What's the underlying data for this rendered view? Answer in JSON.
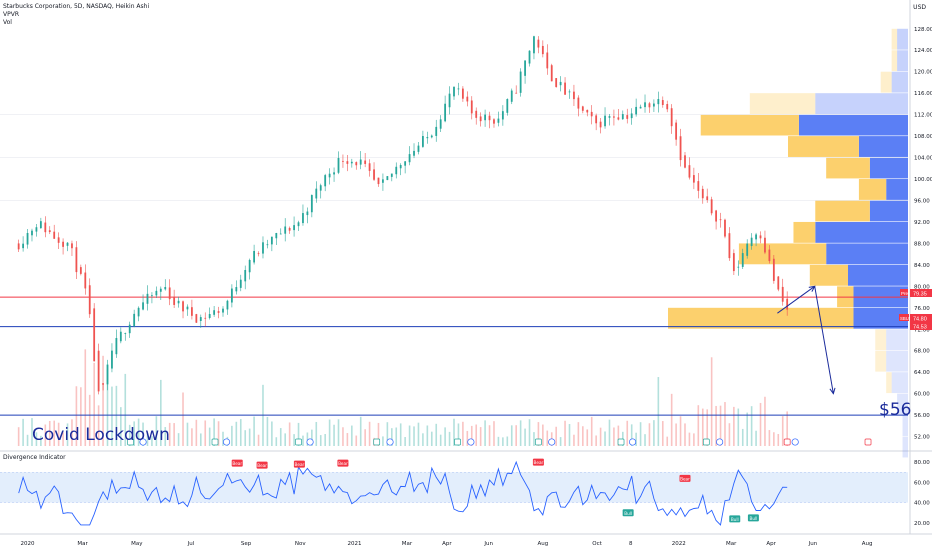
{
  "header": {
    "symbol_line": "Starbucks Corporation, 5D, NASDAQ, Heikin Ashi",
    "indicator_1": "VPVR",
    "indicator_2": "Vol",
    "currency": "USD"
  },
  "annotations": {
    "covid_label": "Covid Lockdown",
    "target_label": "$56"
  },
  "price_badges": {
    "pre_tag": "Pre",
    "pre_value": "79.35",
    "sbux_tag": "SBUX",
    "sbux_value": "74.80",
    "low_value": "74.53"
  },
  "oscillator": {
    "title": "Divergence Indicator",
    "ticks": [
      "80.00",
      "60.00",
      "40.00",
      "20.00"
    ],
    "signals": [
      {
        "x": "2020-08-22",
        "y": 79,
        "label": "Bear"
      },
      {
        "x": "2020-09-19",
        "y": 77,
        "label": "Bear"
      },
      {
        "x": "2020-10-31",
        "y": 78,
        "label": "Bear"
      },
      {
        "x": "2020-12-19",
        "y": 79,
        "label": "Bear"
      },
      {
        "x": "2021-07-27",
        "y": 80,
        "label": "Bear"
      },
      {
        "x": "2021-11-05",
        "y": 30,
        "label": "Bull"
      },
      {
        "x": "2022-01-08",
        "y": 64,
        "label": "Bear"
      },
      {
        "x": "2022-03-05",
        "y": 24,
        "label": "Bull"
      },
      {
        "x": "2022-03-26",
        "y": 25,
        "label": "Bull"
      }
    ]
  },
  "chart_data": {
    "type": "candlestick",
    "xlabels": [
      "2020",
      "Mar",
      "May",
      "Jul",
      "Sep",
      "Nov",
      "2021",
      "Mar",
      "Apr",
      "Jun",
      "Aug",
      "Oct",
      "8",
      "2022",
      "Mar",
      "Apr",
      "Jun",
      "Aug"
    ],
    "yticks": [
      52,
      56,
      60,
      64,
      68,
      72,
      76,
      80,
      84,
      88,
      92,
      96,
      100,
      104,
      108,
      112,
      116,
      120,
      124,
      128
    ],
    "ylim": [
      49.5,
      131.5
    ],
    "price_path": [
      [
        "2019-12-20",
        88
      ],
      [
        "2020-01-10",
        92
      ],
      [
        "2020-01-31",
        89
      ],
      [
        "2020-02-14",
        88
      ],
      [
        "2020-03-06",
        78
      ],
      [
        "2020-03-20",
        58
      ],
      [
        "2020-04-03",
        68
      ],
      [
        "2020-05-01",
        76
      ],
      [
        "2020-06-01",
        80
      ],
      [
        "2020-06-12",
        77
      ],
      [
        "2020-07-10",
        74
      ],
      [
        "2020-08-07",
        76
      ],
      [
        "2020-09-04",
        85
      ],
      [
        "2020-10-02",
        89
      ],
      [
        "2020-10-30",
        92
      ],
      [
        "2020-11-27",
        100
      ],
      [
        "2020-12-18",
        104
      ],
      [
        "2021-01-08",
        103
      ],
      [
        "2021-01-29",
        98
      ],
      [
        "2021-02-26",
        104
      ],
      [
        "2021-03-26",
        108
      ],
      [
        "2021-04-23",
        117
      ],
      [
        "2021-05-14",
        112
      ],
      [
        "2021-06-11",
        111
      ],
      [
        "2021-07-02",
        117
      ],
      [
        "2021-07-23",
        127
      ],
      [
        "2021-08-06",
        120
      ],
      [
        "2021-08-27",
        116
      ],
      [
        "2021-09-17",
        112
      ],
      [
        "2021-10-01",
        110
      ],
      [
        "2021-10-15",
        112
      ],
      [
        "2021-11-05",
        112
      ],
      [
        "2021-11-26",
        114
      ],
      [
        "2021-12-17",
        115
      ],
      [
        "2022-01-07",
        102
      ],
      [
        "2022-01-28",
        96
      ],
      [
        "2022-02-18",
        92
      ],
      [
        "2022-03-04",
        82
      ],
      [
        "2022-03-18",
        88
      ],
      [
        "2022-04-01",
        91
      ],
      [
        "2022-04-22",
        79
      ],
      [
        "2022-05-06",
        74.5
      ]
    ],
    "horizontal_levels": [
      {
        "price": 78,
        "color": "#f23645"
      },
      {
        "price": 72.5,
        "color": "#1e3fb8"
      },
      {
        "price": 56,
        "color": "#1e3fb8"
      }
    ],
    "projection": [
      [
        "2022-04-22",
        75
      ],
      [
        "2022-06-03",
        80
      ],
      [
        "2022-06-24",
        60
      ]
    ],
    "volume_profile": [
      {
        "price": 126,
        "up": 1,
        "down": 2
      },
      {
        "price": 122,
        "up": 1,
        "down": 2
      },
      {
        "price": 118,
        "up": 2,
        "down": 3
      },
      {
        "price": 114,
        "up": 12,
        "down": 17
      },
      {
        "price": 110,
        "up": 18,
        "down": 20
      },
      {
        "price": 106,
        "up": 13,
        "down": 9
      },
      {
        "price": 102,
        "up": 8,
        "down": 7
      },
      {
        "price": 98,
        "up": 5,
        "down": 4
      },
      {
        "price": 94,
        "up": 10,
        "down": 7
      },
      {
        "price": 90,
        "up": 4,
        "down": 17
      },
      {
        "price": 86,
        "up": 16,
        "down": 15
      },
      {
        "price": 82,
        "up": 7,
        "down": 11
      },
      {
        "price": 78,
        "up": 3,
        "down": 10
      },
      {
        "price": 74,
        "up": 34,
        "down": 10
      },
      {
        "price": 70,
        "up": 2,
        "down": 4
      },
      {
        "price": 66,
        "up": 2,
        "down": 4
      },
      {
        "price": 62,
        "up": 1,
        "down": 3
      },
      {
        "price": 58,
        "up": 0,
        "down": 2
      },
      {
        "price": 54,
        "up": 0,
        "down": 1
      },
      {
        "price": 50,
        "up": 0,
        "down": 1
      }
    ],
    "oscillator_range": [
      10,
      90
    ],
    "oscillator_band": [
      40,
      70
    ]
  },
  "colors": {
    "up": "#26a69a",
    "down": "#ef5350",
    "profile_up": "#fcd06d",
    "profile_down": "#5b7ff5",
    "osc_line": "#2962ff",
    "osc_band": "#e3eefc",
    "level_red": "#f23645",
    "level_blue": "#1e3fb8",
    "annotation": "#1b2b9b"
  }
}
